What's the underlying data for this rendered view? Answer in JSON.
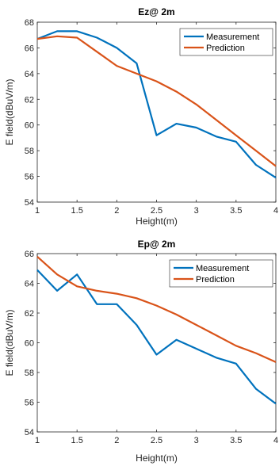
{
  "chart_data": [
    {
      "type": "line",
      "title": "Ez@ 2m",
      "xlabel": "Height(m)",
      "ylabel": "E field(dBuV/m)",
      "xlim": [
        1,
        4
      ],
      "ylim": [
        54,
        68
      ],
      "xticks": [
        1,
        1.5,
        2,
        2.5,
        3,
        3.5,
        4
      ],
      "xtick_labels": [
        "1",
        "1.5",
        "2",
        "2.5",
        "3",
        "3.5",
        "4"
      ],
      "yticks": [
        54,
        56,
        58,
        60,
        62,
        64,
        66,
        68
      ],
      "ytick_labels": [
        "54",
        "56",
        "58",
        "60",
        "62",
        "64",
        "66",
        "68"
      ],
      "legend_position": "top-right",
      "grid": false,
      "series": [
        {
          "name": "Measurement",
          "color": "#0072BD",
          "x": [
            1,
            1.25,
            1.5,
            1.75,
            2,
            2.25,
            2.5,
            2.75,
            3,
            3.25,
            3.5,
            3.75,
            4
          ],
          "values": [
            66.7,
            67.3,
            67.3,
            66.8,
            66.0,
            64.8,
            59.2,
            60.1,
            59.8,
            59.1,
            58.7,
            56.9,
            55.9
          ]
        },
        {
          "name": "Prediction",
          "color": "#D95319",
          "x": [
            1,
            1.25,
            1.5,
            1.75,
            2,
            2.25,
            2.5,
            2.75,
            3,
            3.25,
            3.5,
            3.75,
            4
          ],
          "values": [
            66.7,
            66.9,
            66.8,
            65.7,
            64.6,
            64.0,
            63.4,
            62.6,
            61.6,
            60.4,
            59.2,
            58.0,
            56.8
          ]
        }
      ]
    },
    {
      "type": "line",
      "title": "Ep@ 2m",
      "xlabel": "Height(m)",
      "ylabel": "E field(dBuV/m)",
      "xlim": [
        1,
        4
      ],
      "ylim": [
        54,
        66
      ],
      "xticks": [
        1,
        1.5,
        2,
        2.5,
        3,
        3.5,
        4
      ],
      "xtick_labels": [
        "1",
        "1.5",
        "2",
        "2.5",
        "3",
        "3.5",
        "4"
      ],
      "yticks": [
        54,
        56,
        58,
        60,
        62,
        64,
        66
      ],
      "ytick_labels": [
        "54",
        "56",
        "58",
        "60",
        "62",
        "64",
        "66"
      ],
      "legend_position": "top-right",
      "grid": false,
      "series": [
        {
          "name": "Measurement",
          "color": "#0072BD",
          "x": [
            1,
            1.25,
            1.5,
            1.75,
            2,
            2.25,
            2.5,
            2.75,
            3,
            3.25,
            3.5,
            3.75,
            4
          ],
          "values": [
            64.9,
            63.5,
            64.6,
            62.6,
            62.6,
            61.2,
            59.2,
            60.2,
            59.6,
            59.0,
            58.6,
            56.9,
            55.9
          ]
        },
        {
          "name": "Prediction",
          "color": "#D95319",
          "x": [
            1,
            1.25,
            1.5,
            1.75,
            2,
            2.25,
            2.5,
            2.75,
            3,
            3.25,
            3.5,
            3.75,
            4
          ],
          "values": [
            65.8,
            64.6,
            63.8,
            63.5,
            63.3,
            63.0,
            62.5,
            61.9,
            61.2,
            60.5,
            59.8,
            59.3,
            58.7
          ]
        }
      ]
    }
  ]
}
